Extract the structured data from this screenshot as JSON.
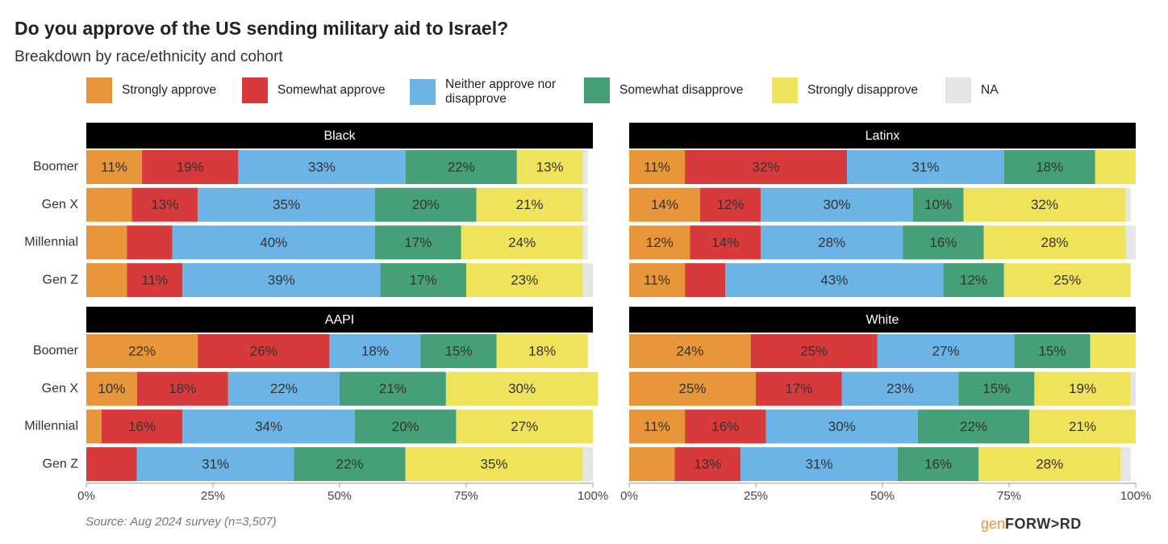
{
  "chart_data": {
    "type": "bar",
    "stacked": true,
    "orientation": "horizontal",
    "title": "Do you approve of the US sending military aid to Israel?",
    "subtitle": "Breakdown by race/ethnicity and cohort",
    "source": "Source: Aug 2024 survey (n=3,507)",
    "brand": [
      "gen",
      "FORW>RD"
    ],
    "categories": [
      "Boomer",
      "Gen X",
      "Millennial",
      "Gen Z"
    ],
    "series": [
      {
        "name": "Strongly approve",
        "color": "#e8963a"
      },
      {
        "name": "Somewhat approve",
        "color": "#d63a3a"
      },
      {
        "name": "Neither approve nor disapprove",
        "color": "#6cb3e6"
      },
      {
        "name": "Somewhat disapprove",
        "color": "#46a077"
      },
      {
        "name": "Strongly disapprove",
        "color": "#f0e35c"
      },
      {
        "name": "NA",
        "color": "#e5e5e5"
      }
    ],
    "xlim": [
      0,
      100
    ],
    "xticks": [
      {
        "value": 0,
        "label": "0%"
      },
      {
        "value": 25,
        "label": "25%"
      },
      {
        "value": 50,
        "label": "50%"
      },
      {
        "value": 75,
        "label": "75%"
      },
      {
        "value": 100,
        "label": "100%"
      }
    ],
    "panels": [
      {
        "title": "Black",
        "series": [
          {
            "values": [
              11,
              9,
              8,
              8
            ],
            "value_labels": [
              "11%",
              null,
              null,
              null
            ]
          },
          {
            "values": [
              19,
              13,
              9,
              11
            ],
            "value_labels": [
              "19%",
              "13%",
              null,
              "11%"
            ]
          },
          {
            "values": [
              33,
              35,
              40,
              39
            ],
            "value_labels": [
              "33%",
              "35%",
              "40%",
              "39%"
            ]
          },
          {
            "values": [
              22,
              20,
              17,
              17
            ],
            "value_labels": [
              "22%",
              "20%",
              "17%",
              "17%"
            ]
          },
          {
            "values": [
              13,
              21,
              24,
              23
            ],
            "value_labels": [
              "13%",
              "21%",
              "24%",
              "23%"
            ]
          },
          {
            "values": [
              1,
              1,
              1,
              2
            ]
          }
        ]
      },
      {
        "title": "Latinx",
        "series": [
          {
            "values": [
              11,
              14,
              12,
              11
            ],
            "value_labels": [
              "11%",
              "14%",
              "12%",
              "11%"
            ]
          },
          {
            "values": [
              32,
              12,
              14,
              8
            ],
            "value_labels": [
              "32%",
              "12%",
              "14%",
              null
            ]
          },
          {
            "values": [
              31,
              30,
              28,
              43
            ],
            "value_labels": [
              "31%",
              "30%",
              "28%",
              "43%"
            ]
          },
          {
            "values": [
              18,
              10,
              16,
              12
            ],
            "value_labels": [
              "18%",
              "10%",
              "16%",
              "12%"
            ]
          },
          {
            "values": [
              8,
              32,
              28,
              25
            ],
            "value_labels": [
              null,
              "32%",
              "28%",
              "25%"
            ]
          },
          {
            "values": [
              0,
              1,
              2,
              0
            ]
          }
        ]
      },
      {
        "title": "AAPI",
        "series": [
          {
            "values": [
              22,
              10,
              3,
              0
            ],
            "value_labels": [
              "22%",
              "10%",
              null,
              null
            ]
          },
          {
            "values": [
              26,
              18,
              16,
              10
            ],
            "value_labels": [
              "26%",
              "18%",
              "16%",
              null
            ]
          },
          {
            "values": [
              18,
              22,
              34,
              31
            ],
            "value_labels": [
              "18%",
              "22%",
              "34%",
              "31%"
            ]
          },
          {
            "values": [
              15,
              21,
              20,
              22
            ],
            "value_labels": [
              "15%",
              "21%",
              "20%",
              "22%"
            ]
          },
          {
            "values": [
              18,
              30,
              27,
              35
            ],
            "value_labels": [
              "18%",
              "30%",
              "27%",
              "35%"
            ]
          },
          {
            "values": [
              0,
              0,
              0,
              2
            ]
          }
        ]
      },
      {
        "title": "White",
        "series": [
          {
            "values": [
              24,
              25,
              11,
              9
            ],
            "value_labels": [
              "24%",
              "25%",
              "11%",
              null
            ]
          },
          {
            "values": [
              25,
              17,
              16,
              13
            ],
            "value_labels": [
              "25%",
              "17%",
              "16%",
              "13%"
            ]
          },
          {
            "values": [
              27,
              23,
              30,
              31
            ],
            "value_labels": [
              "27%",
              "23%",
              "30%",
              "31%"
            ]
          },
          {
            "values": [
              15,
              15,
              22,
              16
            ],
            "value_labels": [
              "15%",
              "15%",
              "22%",
              "16%"
            ]
          },
          {
            "values": [
              9,
              19,
              21,
              28
            ],
            "value_labels": [
              null,
              "19%",
              "21%",
              "28%"
            ]
          },
          {
            "values": [
              0,
              1,
              0,
              2
            ]
          }
        ]
      }
    ]
  }
}
